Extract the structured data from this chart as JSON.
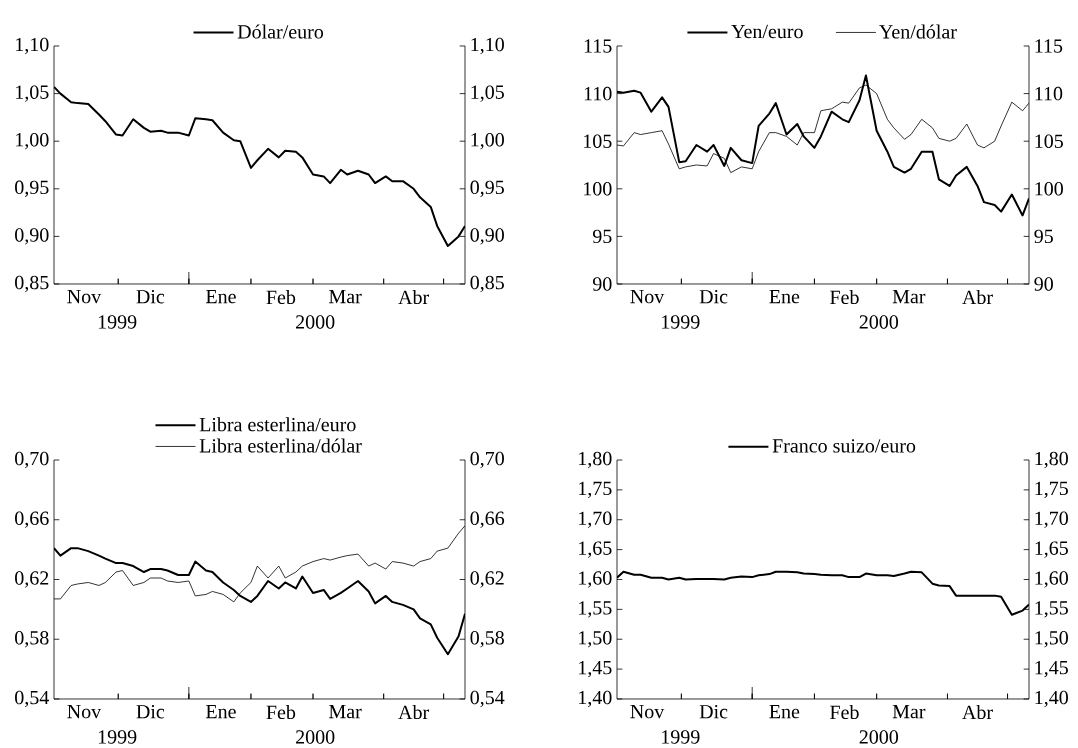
{
  "chart_data": [
    {
      "type": "line",
      "legend": "top",
      "x": [
        "1999-11-01",
        "1999-11-04",
        "1999-11-09",
        "1999-11-12",
        "1999-11-17",
        "1999-11-22",
        "1999-11-25",
        "1999-11-30",
        "1999-12-03",
        "1999-12-08",
        "1999-12-13",
        "1999-12-16",
        "1999-12-21",
        "1999-12-24",
        "1999-12-29",
        "2000-01-03",
        "2000-01-06",
        "2000-01-11",
        "2000-01-14",
        "2000-01-19",
        "2000-01-24",
        "2000-01-27",
        "2000-02-01",
        "2000-02-04",
        "2000-02-09",
        "2000-02-14",
        "2000-02-17",
        "2000-02-22",
        "2000-02-25",
        "2000-03-01",
        "2000-03-06",
        "2000-03-09",
        "2000-03-14",
        "2000-03-17",
        "2000-03-22",
        "2000-03-27",
        "2000-03-30",
        "2000-04-04",
        "2000-04-07",
        "2000-04-12",
        "2000-04-17",
        "2000-04-20",
        "2000-04-25",
        "2000-04-28",
        "2000-05-03",
        "2000-05-08",
        "2000-05-11"
      ],
      "series": [
        {
          "name": "Dólar/euro",
          "color": "#000000",
          "values": [
            1.057,
            1.05,
            1.041,
            1.04,
            1.039,
            1.028,
            1.021,
            1.007,
            1.006,
            1.023,
            1.014,
            1.01,
            1.011,
            1.009,
            1.009,
            1.006,
            1.024,
            1.023,
            1.022,
            1.009,
            1.001,
            1.0,
            0.972,
            0.98,
            0.992,
            0.983,
            0.99,
            0.989,
            0.983,
            0.965,
            0.963,
            0.956,
            0.97,
            0.965,
            0.969,
            0.965,
            0.956,
            0.963,
            0.958,
            0.958,
            0.95,
            0.941,
            0.931,
            0.911,
            0.89,
            0.9,
            0.911
          ]
        }
      ],
      "xlim": [
        "1999-11-01",
        "2000-05-11"
      ],
      "xticks": [
        {
          "value": "1999-11-15",
          "label": "Nov"
        },
        {
          "value": "1999-12-01",
          "label": null
        },
        {
          "value": "1999-12-16",
          "label": "Dic"
        },
        {
          "value": "2000-01-03",
          "label": null
        },
        {
          "value": "2000-01-18",
          "label": "Ene"
        },
        {
          "value": "2000-02-01",
          "label": null
        },
        {
          "value": "2000-02-15",
          "label": "Feb"
        },
        {
          "value": "2000-03-01",
          "label": null
        },
        {
          "value": "2000-03-16",
          "label": "Mar"
        },
        {
          "value": "2000-04-03",
          "label": null
        },
        {
          "value": "2000-04-17",
          "label": "Abr"
        },
        {
          "value": "2000-05-01",
          "label": null
        }
      ],
      "ylim": [
        0.85,
        1.1
      ],
      "yticks": [
        {
          "value": 0.85,
          "label": "0,85"
        },
        {
          "value": 0.9,
          "label": "0,90"
        },
        {
          "value": 0.95,
          "label": "0,95"
        },
        {
          "value": 1.0,
          "label": "1,00"
        },
        {
          "value": 1.05,
          "label": "1,05"
        },
        {
          "value": 1.1,
          "label": "1,10"
        }
      ],
      "y2lim": [
        0.85,
        1.1
      ],
      "y2ticks": [
        {
          "value": 0.85,
          "label": "0,85"
        },
        {
          "value": 0.9,
          "label": "0,90"
        },
        {
          "value": 0.95,
          "label": "0,95"
        },
        {
          "value": 1.0,
          "label": "1,00"
        },
        {
          "value": 1.05,
          "label": "1,05"
        },
        {
          "value": 1.1,
          "label": "1,10"
        }
      ],
      "annotations": [
        "1999",
        "2000"
      ]
    },
    {
      "type": "line",
      "legend": "top",
      "x": [
        "1999-11-01",
        "1999-11-04",
        "1999-11-09",
        "1999-11-12",
        "1999-11-17",
        "1999-11-22",
        "1999-11-25",
        "1999-11-30",
        "1999-12-03",
        "1999-12-08",
        "1999-12-13",
        "1999-12-16",
        "1999-12-21",
        "1999-12-24",
        "1999-12-29",
        "2000-01-03",
        "2000-01-06",
        "2000-01-11",
        "2000-01-14",
        "2000-01-19",
        "2000-01-24",
        "2000-01-27",
        "2000-02-01",
        "2000-02-04",
        "2000-02-09",
        "2000-02-14",
        "2000-02-17",
        "2000-02-22",
        "2000-02-25",
        "2000-03-01",
        "2000-03-06",
        "2000-03-09",
        "2000-03-14",
        "2000-03-17",
        "2000-03-22",
        "2000-03-27",
        "2000-03-30",
        "2000-04-04",
        "2000-04-07",
        "2000-04-12",
        "2000-04-17",
        "2000-04-20",
        "2000-04-25",
        "2000-04-28",
        "2000-05-03",
        "2000-05-08",
        "2000-05-11"
      ],
      "series": [
        {
          "name": "Yen/euro",
          "color": "#000000",
          "values": [
            110.2,
            110.1,
            110.3,
            110.1,
            108.1,
            109.6,
            108.6,
            102.8,
            102.9,
            104.6,
            103.9,
            104.6,
            102.4,
            104.3,
            103.0,
            102.7,
            106.6,
            107.9,
            109.0,
            105.7,
            106.8,
            105.5,
            104.3,
            105.5,
            108.1,
            107.3,
            107.0,
            109.3,
            111.9,
            106.1,
            103.9,
            102.3,
            101.7,
            102.1,
            103.9,
            103.9,
            101.0,
            100.3,
            101.4,
            102.3,
            100.3,
            98.6,
            98.3,
            97.6,
            99.4,
            97.2,
            99.0
          ]
        },
        {
          "name": "Yen/dólar",
          "color": "#000000",
          "values": [
            104.6,
            104.5,
            105.9,
            105.7,
            105.9,
            106.1,
            104.7,
            102.1,
            102.3,
            102.5,
            102.4,
            103.7,
            103.2,
            101.7,
            102.3,
            102.1,
            103.9,
            105.9,
            105.9,
            105.5,
            104.6,
            105.9,
            105.9,
            108.2,
            108.4,
            109.1,
            109.0,
            110.6,
            110.9,
            110.0,
            107.3,
            106.4,
            105.2,
            105.7,
            107.3,
            106.4,
            105.3,
            105.0,
            105.3,
            106.8,
            104.6,
            104.3,
            105.0,
            106.6,
            109.1,
            108.2,
            109.0
          ]
        }
      ],
      "xlim": [
        "1999-11-01",
        "2000-05-11"
      ],
      "xticks": [
        {
          "value": "1999-11-15",
          "label": "Nov"
        },
        {
          "value": "1999-12-01",
          "label": null
        },
        {
          "value": "1999-12-16",
          "label": "Dic"
        },
        {
          "value": "2000-01-03",
          "label": null
        },
        {
          "value": "2000-01-18",
          "label": "Ene"
        },
        {
          "value": "2000-02-01",
          "label": null
        },
        {
          "value": "2000-02-15",
          "label": "Feb"
        },
        {
          "value": "2000-03-01",
          "label": null
        },
        {
          "value": "2000-03-16",
          "label": "Mar"
        },
        {
          "value": "2000-04-03",
          "label": null
        },
        {
          "value": "2000-04-17",
          "label": "Abr"
        },
        {
          "value": "2000-05-01",
          "label": null
        }
      ],
      "ylim": [
        90,
        115
      ],
      "yticks": [
        90,
        95,
        100,
        105,
        110,
        115
      ],
      "y2lim": [
        90,
        115
      ],
      "y2ticks": [
        90,
        95,
        100,
        105,
        110,
        115
      ],
      "annotations": [
        "1999",
        "2000"
      ]
    },
    {
      "type": "line",
      "legend": "top",
      "x": [
        "1999-11-01",
        "1999-11-04",
        "1999-11-09",
        "1999-11-12",
        "1999-11-17",
        "1999-11-22",
        "1999-11-25",
        "1999-11-30",
        "1999-12-03",
        "1999-12-08",
        "1999-12-13",
        "1999-12-16",
        "1999-12-21",
        "1999-12-24",
        "1999-12-29",
        "2000-01-03",
        "2000-01-06",
        "2000-01-11",
        "2000-01-14",
        "2000-01-19",
        "2000-01-24",
        "2000-01-27",
        "2000-02-01",
        "2000-02-04",
        "2000-02-09",
        "2000-02-14",
        "2000-02-17",
        "2000-02-22",
        "2000-02-25",
        "2000-03-01",
        "2000-03-06",
        "2000-03-09",
        "2000-03-14",
        "2000-03-17",
        "2000-03-22",
        "2000-03-27",
        "2000-03-30",
        "2000-04-04",
        "2000-04-07",
        "2000-04-12",
        "2000-04-17",
        "2000-04-20",
        "2000-04-25",
        "2000-04-28",
        "2000-05-03",
        "2000-05-08",
        "2000-05-11"
      ],
      "series": [
        {
          "name": "Libra esterlina/euro",
          "color": "#000000",
          "values": [
            0.641,
            0.636,
            0.641,
            0.641,
            0.639,
            0.636,
            0.634,
            0.631,
            0.631,
            0.629,
            0.625,
            0.627,
            0.627,
            0.626,
            0.623,
            0.623,
            0.632,
            0.626,
            0.625,
            0.618,
            0.613,
            0.609,
            0.605,
            0.609,
            0.619,
            0.614,
            0.618,
            0.614,
            0.622,
            0.611,
            0.613,
            0.607,
            0.611,
            0.614,
            0.619,
            0.612,
            0.604,
            0.609,
            0.605,
            0.603,
            0.6,
            0.594,
            0.59,
            0.581,
            0.57,
            0.582,
            0.597
          ]
        },
        {
          "name": "Libra esterlina/dólar",
          "color": "#000000",
          "values": [
            0.607,
            0.607,
            0.616,
            0.617,
            0.618,
            0.616,
            0.618,
            0.625,
            0.626,
            0.616,
            0.618,
            0.621,
            0.621,
            0.619,
            0.618,
            0.619,
            0.609,
            0.61,
            0.612,
            0.61,
            0.605,
            0.611,
            0.618,
            0.629,
            0.621,
            0.629,
            0.621,
            0.625,
            0.629,
            0.632,
            0.634,
            0.633,
            0.635,
            0.636,
            0.637,
            0.629,
            0.631,
            0.627,
            0.632,
            0.631,
            0.629,
            0.632,
            0.634,
            0.639,
            0.641,
            0.651,
            0.656
          ]
        }
      ],
      "xlim": [
        "1999-11-01",
        "2000-05-11"
      ],
      "xticks": [
        {
          "value": "1999-11-15",
          "label": "Nov"
        },
        {
          "value": "1999-12-01",
          "label": null
        },
        {
          "value": "1999-12-16",
          "label": "Dic"
        },
        {
          "value": "2000-01-03",
          "label": null
        },
        {
          "value": "2000-01-18",
          "label": "Ene"
        },
        {
          "value": "2000-02-01",
          "label": null
        },
        {
          "value": "2000-02-15",
          "label": "Feb"
        },
        {
          "value": "2000-03-01",
          "label": null
        },
        {
          "value": "2000-03-16",
          "label": "Mar"
        },
        {
          "value": "2000-04-03",
          "label": null
        },
        {
          "value": "2000-04-17",
          "label": "Abr"
        },
        {
          "value": "2000-05-01",
          "label": null
        }
      ],
      "ylim": [
        0.54,
        0.7
      ],
      "yticks": [
        {
          "value": 0.54,
          "label": "0,54"
        },
        {
          "value": 0.58,
          "label": "0,58"
        },
        {
          "value": 0.62,
          "label": "0,62"
        },
        {
          "value": 0.66,
          "label": "0,66"
        },
        {
          "value": 0.7,
          "label": "0,70"
        }
      ],
      "y2lim": [
        0.54,
        0.7
      ],
      "y2ticks": [
        {
          "value": 0.54,
          "label": "0,54"
        },
        {
          "value": 0.58,
          "label": "0,58"
        },
        {
          "value": 0.62,
          "label": "0,62"
        },
        {
          "value": 0.66,
          "label": "0,66"
        },
        {
          "value": 0.7,
          "label": "0,70"
        }
      ],
      "annotations": [
        "1999",
        "2000"
      ]
    },
    {
      "type": "line",
      "legend": "top",
      "x": [
        "1999-11-01",
        "1999-11-04",
        "1999-11-09",
        "1999-11-12",
        "1999-11-17",
        "1999-11-22",
        "1999-11-25",
        "1999-11-30",
        "1999-12-03",
        "1999-12-08",
        "1999-12-13",
        "1999-12-16",
        "1999-12-21",
        "1999-12-24",
        "1999-12-29",
        "2000-01-03",
        "2000-01-06",
        "2000-01-11",
        "2000-01-14",
        "2000-01-19",
        "2000-01-24",
        "2000-01-27",
        "2000-02-01",
        "2000-02-04",
        "2000-02-09",
        "2000-02-14",
        "2000-02-17",
        "2000-02-22",
        "2000-02-25",
        "2000-03-01",
        "2000-03-06",
        "2000-03-09",
        "2000-03-14",
        "2000-03-17",
        "2000-03-22",
        "2000-03-27",
        "2000-03-30",
        "2000-04-04",
        "2000-04-07",
        "2000-04-12",
        "2000-04-17",
        "2000-04-20",
        "2000-04-25",
        "2000-04-28",
        "2000-05-03",
        "2000-05-08",
        "2000-05-11"
      ],
      "series": [
        {
          "name": "Franco suizo/euro",
          "color": "#000000",
          "values": [
            1.603,
            1.613,
            1.608,
            1.608,
            1.603,
            1.603,
            1.6,
            1.603,
            1.6,
            1.601,
            1.601,
            1.601,
            1.6,
            1.603,
            1.605,
            1.604,
            1.607,
            1.609,
            1.613,
            1.613,
            1.612,
            1.61,
            1.609,
            1.608,
            1.607,
            1.607,
            1.604,
            1.604,
            1.61,
            1.607,
            1.607,
            1.606,
            1.61,
            1.613,
            1.612,
            1.593,
            1.59,
            1.589,
            1.573,
            1.573,
            1.573,
            1.573,
            1.573,
            1.571,
            1.541,
            1.548,
            1.558
          ]
        }
      ],
      "xlim": [
        "1999-11-01",
        "2000-05-11"
      ],
      "xticks": [
        {
          "value": "1999-11-15",
          "label": "Nov"
        },
        {
          "value": "1999-12-01",
          "label": null
        },
        {
          "value": "1999-12-16",
          "label": "Dic"
        },
        {
          "value": "2000-01-03",
          "label": null
        },
        {
          "value": "2000-01-18",
          "label": "Ene"
        },
        {
          "value": "2000-02-01",
          "label": null
        },
        {
          "value": "2000-02-15",
          "label": "Feb"
        },
        {
          "value": "2000-03-01",
          "label": null
        },
        {
          "value": "2000-03-16",
          "label": "Mar"
        },
        {
          "value": "2000-04-03",
          "label": null
        },
        {
          "value": "2000-04-17",
          "label": "Abr"
        },
        {
          "value": "2000-05-01",
          "label": null
        }
      ],
      "ylim": [
        1.4,
        1.8
      ],
      "yticks": [
        {
          "value": 1.4,
          "label": "1,40"
        },
        {
          "value": 1.45,
          "label": "1,45"
        },
        {
          "value": 1.5,
          "label": "1,50"
        },
        {
          "value": 1.55,
          "label": "1,55"
        },
        {
          "value": 1.6,
          "label": "1,60"
        },
        {
          "value": 1.65,
          "label": "1,65"
        },
        {
          "value": 1.7,
          "label": "1,70"
        },
        {
          "value": 1.75,
          "label": "1,75"
        },
        {
          "value": 1.8,
          "label": "1,80"
        }
      ],
      "y2lim": [
        1.4,
        1.8
      ],
      "y2ticks": [
        {
          "value": 1.4,
          "label": "1,40"
        },
        {
          "value": 1.45,
          "label": "1,45"
        },
        {
          "value": 1.5,
          "label": "1,50"
        },
        {
          "value": 1.55,
          "label": "1,55"
        },
        {
          "value": 1.6,
          "label": "1,60"
        },
        {
          "value": 1.65,
          "label": "1,65"
        },
        {
          "value": 1.7,
          "label": "1,70"
        },
        {
          "value": 1.75,
          "label": "1,75"
        },
        {
          "value": 1.8,
          "label": "1,80"
        }
      ],
      "annotations": [
        "1999",
        "2000"
      ]
    }
  ]
}
